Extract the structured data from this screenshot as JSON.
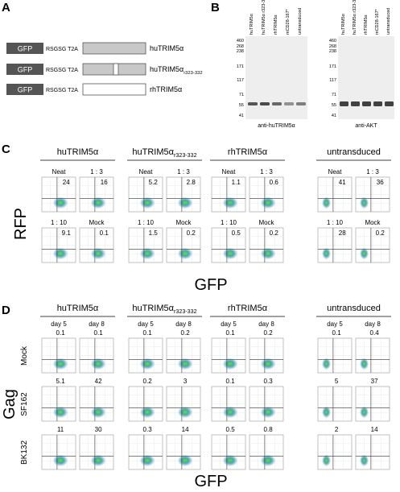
{
  "panel_a": {
    "label": "A",
    "constructs": [
      {
        "tag": "GFP",
        "linker": "RSGSG T2A",
        "name": "huTRIM5α"
      },
      {
        "tag": "GFP",
        "linker": "RSGSG T2A",
        "name": "huTRIM5α",
        "subscript": "r323-332"
      },
      {
        "tag": "GFP",
        "linker": "RSGSG T2A",
        "name": "rhTRIM5α"
      }
    ]
  },
  "panel_b": {
    "label": "B",
    "blots": [
      {
        "lanes": [
          "huTRIM5α",
          "huTRIM5α r323-332",
          "rhTRIM5α",
          "mCD28-167*",
          "untransduced"
        ],
        "markers": [
          460,
          268,
          238,
          171,
          117,
          71,
          55,
          41
        ],
        "antibody": "anti-huTRIM5α"
      },
      {
        "lanes": [
          "huTRIM5α",
          "huTRIM5α r323-332",
          "rhTRIM5α",
          "mCD28-167*",
          "untransduced"
        ],
        "markers": [
          460,
          268,
          238,
          171,
          117,
          71,
          55,
          41
        ],
        "antibody": "anti-AKT"
      }
    ]
  },
  "panel_c": {
    "label": "C",
    "y_label": "RFP",
    "x_label": "GFP",
    "groups": [
      {
        "name": "huTRIM5α",
        "plots": [
          {
            "label": "Neat",
            "value": 24
          },
          {
            "label": "1 : 3",
            "value": 16
          },
          {
            "label": "1 : 10",
            "value": 9.1
          },
          {
            "label": "Mock",
            "value": 0.1
          }
        ]
      },
      {
        "name": "huTRIM5α",
        "subscript": "r323-332",
        "plots": [
          {
            "label": "Neat",
            "value": 5.2
          },
          {
            "label": "1 : 3",
            "value": 2.8
          },
          {
            "label": "1 : 10",
            "value": 1.5
          },
          {
            "label": "Mock",
            "value": 0.2
          }
        ]
      },
      {
        "name": "rhTRIM5α",
        "plots": [
          {
            "label": "Neat",
            "value": 1.1
          },
          {
            "label": "1 : 3",
            "value": 0.6
          },
          {
            "label": "1 : 10",
            "value": 0.5
          },
          {
            "label": "Mock",
            "value": 0.2
          }
        ]
      },
      {
        "name": "untransduced",
        "plots": [
          {
            "label": "Neat",
            "value": 41
          },
          {
            "label": "1 : 3",
            "value": 36
          },
          {
            "label": "1 : 10",
            "value": 28
          },
          {
            "label": "Mock",
            "value": 0.2
          }
        ]
      }
    ]
  },
  "panel_d": {
    "label": "D",
    "y_label": "Gag",
    "x_label": "GFP",
    "days": [
      "day 5",
      "day 8"
    ],
    "rows": [
      "Mock",
      "SF162",
      "BK132"
    ],
    "groups": [
      {
        "name": "huTRIM5α",
        "values": [
          [
            0.1,
            0.1
          ],
          [
            5.1,
            42
          ],
          [
            11,
            30
          ]
        ]
      },
      {
        "name": "huTRIM5α",
        "subscript": "r323-332",
        "values": [
          [
            0.1,
            0.2
          ],
          [
            0.2,
            3
          ],
          [
            0.3,
            14
          ]
        ]
      },
      {
        "name": "rhTRIM5α",
        "values": [
          [
            0.1,
            0.2
          ],
          [
            0.1,
            0.3
          ],
          [
            0.5,
            0.8
          ]
        ]
      },
      {
        "name": "untransduced",
        "values": [
          [
            0.1,
            0.4
          ],
          [
            5,
            37
          ],
          [
            2,
            14
          ]
        ]
      }
    ]
  }
}
